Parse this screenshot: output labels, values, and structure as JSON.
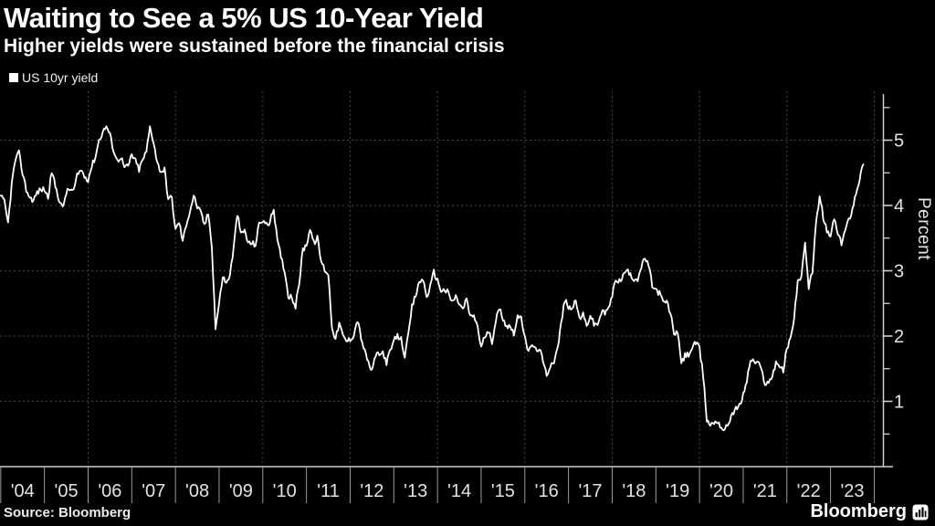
{
  "header": {
    "title": "Waiting to See a 5% US 10-Year Yield",
    "subtitle": "Higher yields were sustained before the financial crisis"
  },
  "footer": {
    "source": "Source: Bloomberg",
    "brand": "Bloomberg"
  },
  "colors": {
    "background": "#000000",
    "line": "#ffffff",
    "grid": "#464646",
    "axis": "#cfcfcf",
    "tick": "#9c9c9c",
    "tick_label": "#e3e3e3"
  },
  "chart_data": {
    "type": "line",
    "title": "Waiting to See a 5% US 10-Year Yield",
    "subtitle": "Higher yields were sustained before the financial crisis",
    "ylabel": "Percent",
    "ylabel_side": "right",
    "xlabel": "",
    "grid": "dashed",
    "legend_position": "top-left",
    "ylim": [
      0,
      5.75
    ],
    "y_major_ticks": [
      1,
      2,
      3,
      4,
      5
    ],
    "y_minor_ticks": [
      0.5,
      1.5,
      2.5,
      3.5,
      4.5,
      5.5
    ],
    "x_year_start": 2004,
    "x_year_end": 2024,
    "x_tick_labels": [
      "'04",
      "'05",
      "'06",
      "'07",
      "'08",
      "'09",
      "'10",
      "'11",
      "'12",
      "'13",
      "'14",
      "'15",
      "'16",
      "'17",
      "'18",
      "'19",
      "'20",
      "'21",
      "'22",
      "'23"
    ],
    "x_gridline_years": [
      2006,
      2008,
      2010,
      2012,
      2014,
      2016,
      2018,
      2020,
      2022,
      2024
    ],
    "series": [
      {
        "name": "US 10yr yield",
        "color": "#ffffff",
        "start_year": 2004,
        "points_per_year": 12,
        "values": [
          4.15,
          4.05,
          3.72,
          4.32,
          4.7,
          4.8,
          4.5,
          4.24,
          4.12,
          4.08,
          4.2,
          4.24,
          4.25,
          4.12,
          4.52,
          4.3,
          4.1,
          3.95,
          4.2,
          4.25,
          4.22,
          4.45,
          4.55,
          4.45,
          4.4,
          4.6,
          4.75,
          5.0,
          5.12,
          5.22,
          5.08,
          4.85,
          4.68,
          4.75,
          4.58,
          4.6,
          4.78,
          4.68,
          4.55,
          4.7,
          4.82,
          5.2,
          4.98,
          4.65,
          4.52,
          4.55,
          4.1,
          4.12,
          3.62,
          3.75,
          3.45,
          3.72,
          3.92,
          4.15,
          3.98,
          3.88,
          3.7,
          3.88,
          3.4,
          2.12,
          2.5,
          2.92,
          2.8,
          2.95,
          3.35,
          3.88,
          3.55,
          3.62,
          3.42,
          3.42,
          3.4,
          3.72,
          3.78,
          3.7,
          3.75,
          3.95,
          3.45,
          3.22,
          3.0,
          2.62,
          2.6,
          2.45,
          2.82,
          3.32,
          3.4,
          3.65,
          3.42,
          3.5,
          3.15,
          3.02,
          2.95,
          2.15,
          1.95,
          2.2,
          2.0,
          1.92,
          1.95,
          2.02,
          2.25,
          1.98,
          1.76,
          1.6,
          1.45,
          1.72,
          1.7,
          1.75,
          1.6,
          1.76,
          1.92,
          2.0,
          1.95,
          1.7,
          2.0,
          2.45,
          2.62,
          2.82,
          2.88,
          2.6,
          2.75,
          2.98,
          2.85,
          2.7,
          2.7,
          2.66,
          2.52,
          2.6,
          2.5,
          2.4,
          2.58,
          2.28,
          2.32,
          2.15,
          1.82,
          2.0,
          2.05,
          1.92,
          2.24,
          2.42,
          2.28,
          2.15,
          2.15,
          2.05,
          2.3,
          2.25,
          2.02,
          1.74,
          1.88,
          1.78,
          1.82,
          1.6,
          1.4,
          1.56,
          1.62,
          1.8,
          2.2,
          2.56,
          2.42,
          2.45,
          2.52,
          2.28,
          2.32,
          2.16,
          2.32,
          2.18,
          2.18,
          2.36,
          2.35,
          2.42,
          2.62,
          2.88,
          2.84,
          2.92,
          3.02,
          2.92,
          2.88,
          2.88,
          3.05,
          3.2,
          3.08,
          2.78,
          2.7,
          2.66,
          2.52,
          2.52,
          2.35,
          2.05,
          2.05,
          1.58,
          1.7,
          1.72,
          1.82,
          1.9,
          1.8,
          1.4,
          0.72,
          0.64,
          0.68,
          0.7,
          0.6,
          0.56,
          0.68,
          0.82,
          0.88,
          0.93,
          1.1,
          1.32,
          1.64,
          1.6,
          1.6,
          1.48,
          1.28,
          1.28,
          1.4,
          1.6,
          1.55,
          1.46,
          1.82,
          1.95,
          2.3,
          2.85,
          2.9,
          3.4,
          2.72,
          3.0,
          3.7,
          4.15,
          3.82,
          3.6,
          3.52,
          3.82,
          3.55,
          3.42,
          3.62,
          3.78,
          3.95,
          4.2,
          4.42,
          4.63
        ]
      }
    ]
  }
}
